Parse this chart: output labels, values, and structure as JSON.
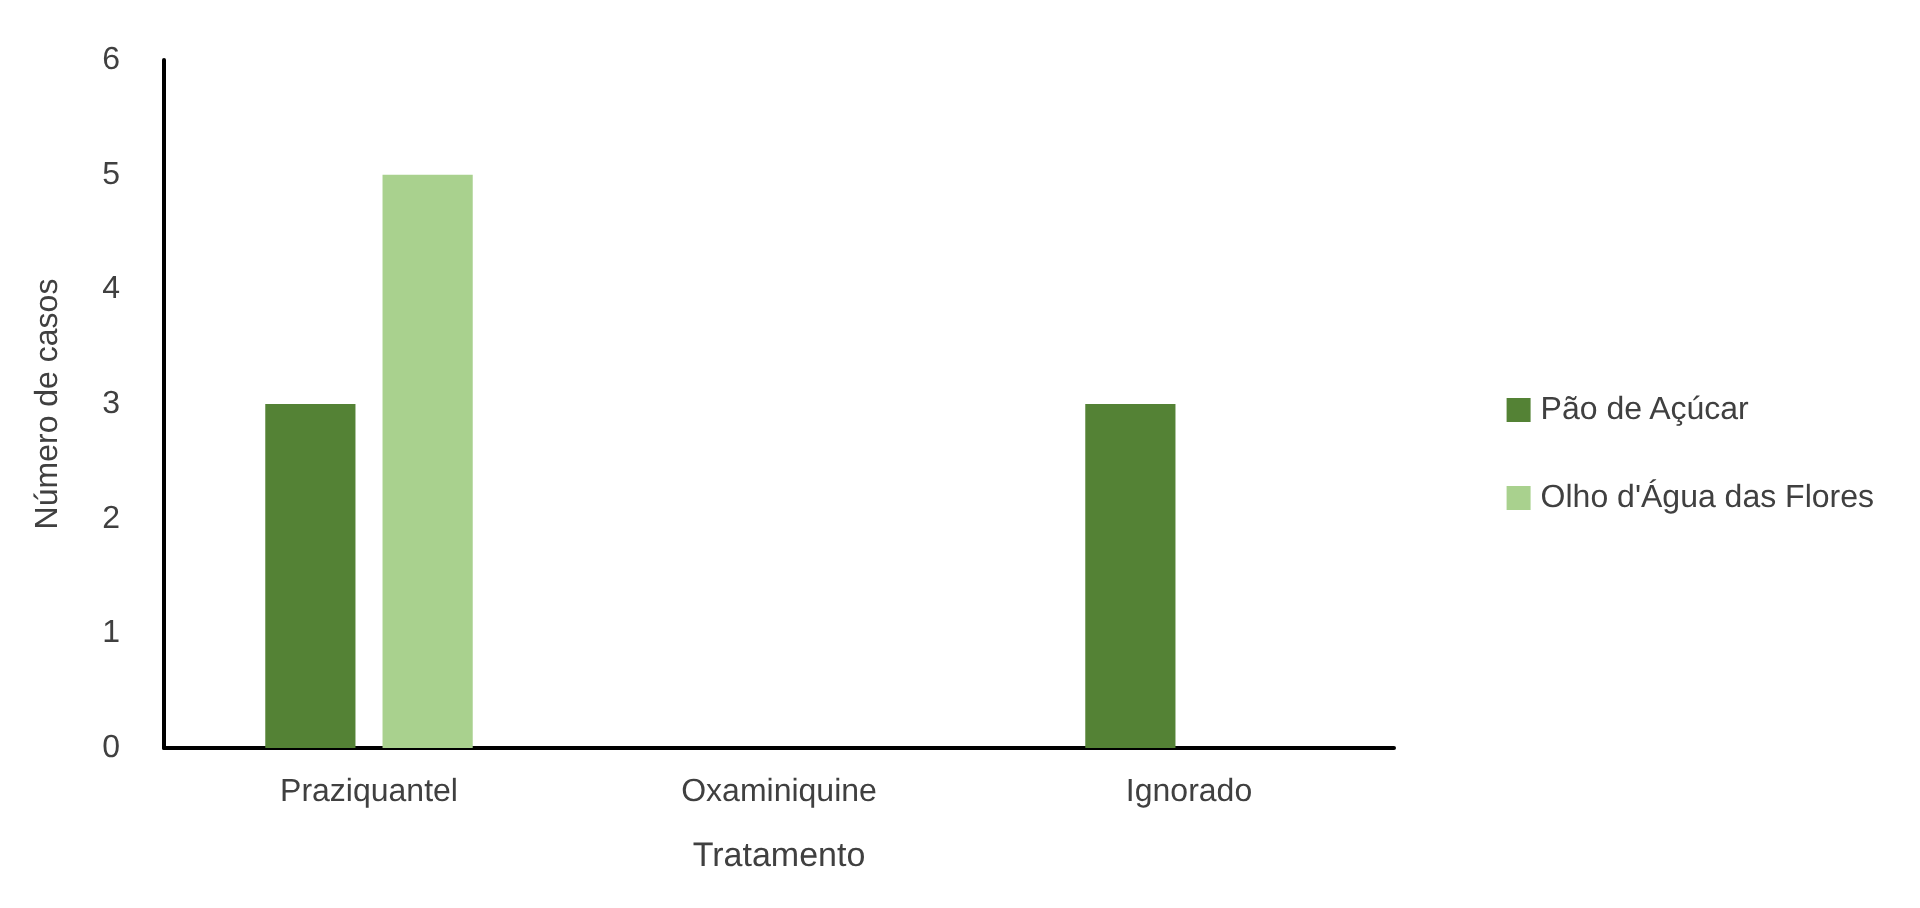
{
  "chart_data": {
    "type": "bar",
    "xlabel": "Tratamento",
    "ylabel": "Número de casos",
    "categories": [
      "Praziquantel",
      "Oxaminiquine",
      "Ignorado"
    ],
    "series": [
      {
        "name": "Pão de Açúcar",
        "color": "#548235",
        "values": [
          3,
          0,
          3
        ]
      },
      {
        "name": "Olho d'Água das Flores",
        "color": "#a9d18e",
        "values": [
          5,
          0,
          0
        ]
      }
    ],
    "ylim": [
      0,
      6
    ],
    "yticks": [
      0,
      1,
      2,
      3,
      4,
      5,
      6
    ],
    "grid": false,
    "legend": "right"
  }
}
